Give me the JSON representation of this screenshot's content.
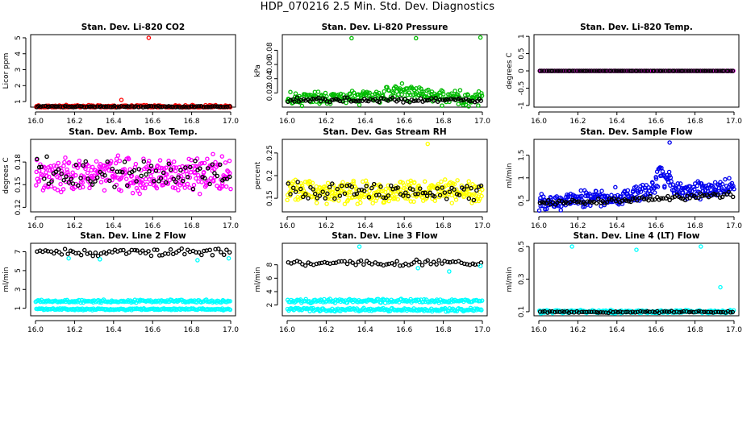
{
  "title": "HDP_070216  2.5 Min. Std. Dev. Diagnostics",
  "chart_data": [
    {
      "type": "scatter",
      "title": "Stan. Dev. Li-820 CO2",
      "ylabel": "Licor ppm",
      "xlim": [
        16.0,
        17.0
      ],
      "ylim": [
        0.65,
        5.2
      ],
      "xticks": [
        "16.0",
        "16.2",
        "16.4",
        "16.6",
        "16.8",
        "17.0"
      ],
      "yticks": [
        1,
        2,
        3,
        4,
        5
      ],
      "series": [
        {
          "name": "scatter",
          "color": "#ff0000",
          "base": 0.68,
          "spread": 0.12,
          "count": 230,
          "seed": 11
        },
        {
          "name": "mean",
          "color": "#000000",
          "base": 0.68,
          "spread": 0.05,
          "count": 90,
          "seed": 12
        }
      ],
      "outliers": [
        {
          "x": 16.58,
          "y": 5.0,
          "color": "#ff0000"
        },
        {
          "x": 16.44,
          "y": 1.1,
          "color": "#ff0000"
        }
      ]
    },
    {
      "type": "scatter",
      "title": "Stan. Dev. Li-820 Pressure",
      "ylabel": "kPa",
      "xlim": [
        16.0,
        17.0
      ],
      "ylim": [
        0.0,
        0.102
      ],
      "xticks": [
        "16.0",
        "16.2",
        "16.4",
        "16.6",
        "16.8",
        "17.0"
      ],
      "yticks": [
        0.02,
        0.04,
        0.06,
        0.08
      ],
      "series": [
        {
          "name": "scatter",
          "color": "#00bb00",
          "base": 0.012,
          "spread": 0.012,
          "count": 250,
          "seed": 21,
          "bump": {
            "center": 16.6,
            "height": 0.012,
            "width": 0.15
          }
        },
        {
          "name": "mean",
          "color": "#000000",
          "base": 0.01,
          "spread": 0.004,
          "count": 90,
          "seed": 22
        }
      ],
      "outliers": [
        {
          "x": 16.33,
          "y": 0.097,
          "color": "#00bb00"
        },
        {
          "x": 16.66,
          "y": 0.097,
          "color": "#00bb00"
        },
        {
          "x": 16.99,
          "y": 0.098,
          "color": "#00bb00"
        }
      ]
    },
    {
      "type": "scatter",
      "title": "Stan. Dev. Li-820 Temp.",
      "ylabel": "degrees C",
      "xlim": [
        16.0,
        17.0
      ],
      "ylim": [
        -1.05,
        1.05
      ],
      "xticks": [
        "16.0",
        "16.2",
        "16.4",
        "16.6",
        "16.8",
        "17.0"
      ],
      "yticks": [
        -1.0,
        -0.5,
        0.0,
        0.5,
        1.0
      ],
      "series": [
        {
          "name": "scatter",
          "color": "#ff00ff",
          "base": 0.0,
          "spread": 0.0,
          "count": 120,
          "seed": 31
        },
        {
          "name": "mean",
          "color": "#000000",
          "base": 0.0,
          "spread": 0.0,
          "count": 90,
          "seed": 32
        }
      ],
      "outliers": []
    },
    {
      "type": "scatter",
      "title": "Stan. Dev. Amb. Box Temp.",
      "ylabel": "degrees C",
      "xlim": [
        16.0,
        17.0
      ],
      "ylim": [
        0.114,
        0.21
      ],
      "xticks": [
        "16.0",
        "16.2",
        "16.4",
        "16.6",
        "16.8",
        "17.0"
      ],
      "yticks": [
        0.12,
        0.15,
        0.18
      ],
      "series": [
        {
          "name": "scatter",
          "color": "#ff00ff",
          "base": 0.163,
          "spread": 0.028,
          "count": 320,
          "seed": 41
        },
        {
          "name": "mean",
          "color": "#000000",
          "base": 0.165,
          "spread": 0.024,
          "count": 80,
          "seed": 42
        }
      ],
      "outliers": []
    },
    {
      "type": "scatter",
      "title": "Stan. Dev. Gas Stream RH",
      "ylabel": "percent",
      "xlim": [
        16.0,
        17.0
      ],
      "ylim": [
        0.12,
        0.28
      ],
      "xticks": [
        "16.0",
        "16.2",
        "16.4",
        "16.6",
        "16.8",
        "17.0"
      ],
      "yticks": [
        0.15,
        0.2,
        0.25
      ],
      "series": [
        {
          "name": "scatter",
          "color": "#ffff00",
          "base": 0.165,
          "spread": 0.03,
          "count": 330,
          "seed": 51
        },
        {
          "name": "mean",
          "color": "#000000",
          "base": 0.165,
          "spread": 0.022,
          "count": 80,
          "seed": 52
        }
      ],
      "outliers": [
        {
          "x": 16.72,
          "y": 0.27,
          "color": "#ffff00"
        }
      ]
    },
    {
      "type": "scatter",
      "title": "Stan. Dev. Sample Flow",
      "ylabel": "ml/min",
      "xlim": [
        16.0,
        17.0
      ],
      "ylim": [
        0.25,
        1.85
      ],
      "xticks": [
        "16.0",
        "16.2",
        "16.4",
        "16.6",
        "16.8",
        "17.0"
      ],
      "yticks": [
        0.5,
        1.0,
        1.5
      ],
      "series": [
        {
          "name": "scatter",
          "color": "#0000ee",
          "base": 0.45,
          "spread": 0.22,
          "count": 320,
          "seed": 61,
          "trend": 0.35,
          "bump": {
            "center": 16.63,
            "height": 0.55,
            "width": 0.05
          }
        },
        {
          "name": "mean",
          "color": "#000000",
          "base": 0.42,
          "spread": 0.08,
          "count": 90,
          "seed": 62,
          "trend": 0.2
        }
      ],
      "outliers": [
        {
          "x": 16.67,
          "y": 1.78,
          "color": "#0000ee"
        }
      ]
    },
    {
      "type": "scatter",
      "title": "Stan. Dev. Line 2 Flow",
      "ylabel": "ml/min",
      "xlim": [
        16.0,
        17.0
      ],
      "ylim": [
        0.2,
        7.9
      ],
      "xticks": [
        "16.0",
        "16.2",
        "16.4",
        "16.6",
        "16.8",
        "17.0"
      ],
      "yticks": [
        1,
        3,
        5,
        7
      ],
      "series": [
        {
          "name": "band-high",
          "color": "#00ffff",
          "base": 1.75,
          "spread": 0.18,
          "count": 170,
          "seed": 71
        },
        {
          "name": "band-low",
          "color": "#00ffff",
          "base": 0.9,
          "spread": 0.12,
          "count": 170,
          "seed": 72
        },
        {
          "name": "mean",
          "color": "#000000",
          "base": 6.95,
          "spread": 0.45,
          "count": 70,
          "seed": 73
        }
      ],
      "outliers": [
        {
          "x": 16.17,
          "y": 6.3,
          "color": "#00ffff"
        },
        {
          "x": 16.33,
          "y": 6.2,
          "color": "#00ffff"
        },
        {
          "x": 16.83,
          "y": 6.1,
          "color": "#00ffff"
        },
        {
          "x": 16.99,
          "y": 6.3,
          "color": "#00ffff"
        }
      ]
    },
    {
      "type": "scatter",
      "title": "Stan. Dev. Line 3 Flow",
      "ylabel": "ml/min",
      "xlim": [
        16.0,
        17.0
      ],
      "ylim": [
        0.4,
        11.2
      ],
      "xticks": [
        "16.0",
        "16.2",
        "16.4",
        "16.6",
        "16.8",
        "17.0"
      ],
      "yticks": [
        2,
        4,
        6,
        8
      ],
      "series": [
        {
          "name": "band-high",
          "color": "#00ffff",
          "base": 2.6,
          "spread": 0.35,
          "count": 170,
          "seed": 81
        },
        {
          "name": "band-low",
          "color": "#00ffff",
          "base": 1.3,
          "spread": 0.3,
          "count": 170,
          "seed": 82
        },
        {
          "name": "mean",
          "color": "#000000",
          "base": 8.3,
          "spread": 0.5,
          "count": 70,
          "seed": 83
        }
      ],
      "outliers": [
        {
          "x": 16.37,
          "y": 10.7,
          "color": "#00ffff"
        },
        {
          "x": 16.67,
          "y": 7.5,
          "color": "#00ffff"
        },
        {
          "x": 16.83,
          "y": 7.0,
          "color": "#00ffff"
        },
        {
          "x": 16.99,
          "y": 7.8,
          "color": "#00ffff"
        }
      ]
    },
    {
      "type": "scatter",
      "title": "Stan. Dev. Line 4 (LT) Flow",
      "ylabel": "ml/min",
      "xlim": [
        16.0,
        17.0
      ],
      "ylim": [
        0.075,
        0.52
      ],
      "xticks": [
        "16.0",
        "16.2",
        "16.4",
        "16.6",
        "16.8",
        "17.0"
      ],
      "yticks": [
        0.1,
        0.3,
        0.5
      ],
      "series": [
        {
          "name": "scatter",
          "color": "#00ffff",
          "base": 0.1,
          "spread": 0.012,
          "count": 250,
          "seed": 91
        },
        {
          "name": "mean",
          "color": "#000000",
          "base": 0.098,
          "spread": 0.006,
          "count": 80,
          "seed": 92
        }
      ],
      "outliers": [
        {
          "x": 16.17,
          "y": 0.5,
          "color": "#00ffff"
        },
        {
          "x": 16.5,
          "y": 0.48,
          "color": "#00ffff"
        },
        {
          "x": 16.83,
          "y": 0.5,
          "color": "#00ffff"
        },
        {
          "x": 16.93,
          "y": 0.25,
          "color": "#00ffff"
        }
      ]
    }
  ]
}
